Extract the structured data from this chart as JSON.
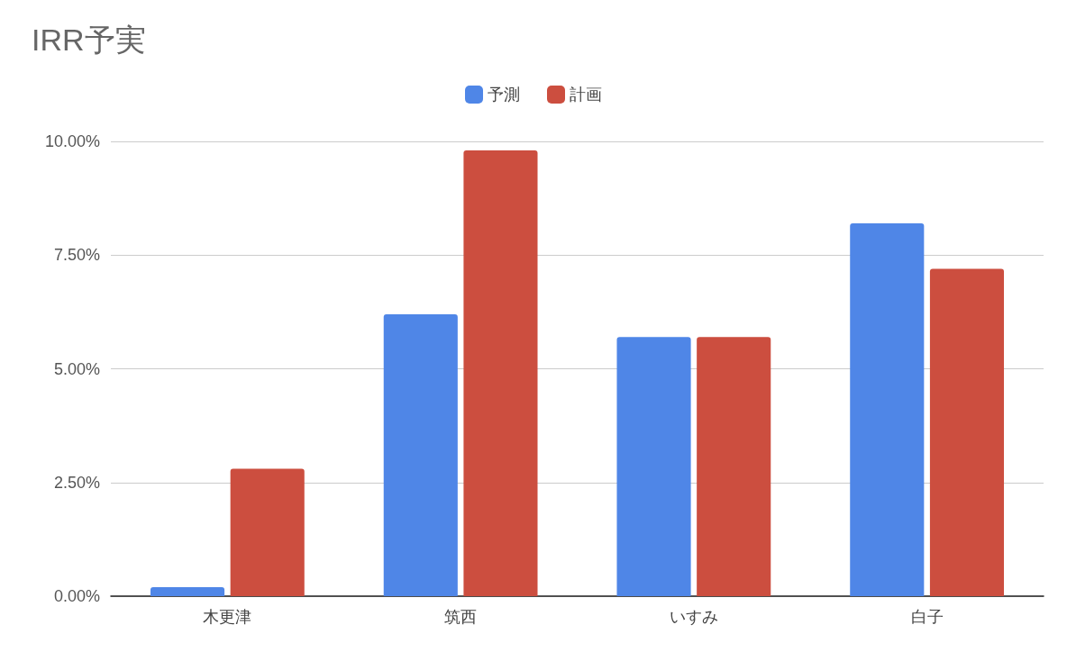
{
  "chart_data": {
    "type": "bar",
    "title": "IRR予実",
    "categories": [
      "木更津",
      "筑西",
      "いすみ",
      "白子"
    ],
    "series": [
      {
        "name": "予測",
        "color": "#4f86e7",
        "values": [
          0.2,
          6.2,
          5.7,
          8.2
        ]
      },
      {
        "name": "計画",
        "color": "#cc4e3f",
        "values": [
          2.8,
          9.8,
          5.7,
          7.2
        ]
      }
    ],
    "ylim": [
      0,
      10
    ],
    "yticks": [
      {
        "value": 0,
        "label": "0.00%"
      },
      {
        "value": 2.5,
        "label": "2.50%"
      },
      {
        "value": 5,
        "label": "5.00%"
      },
      {
        "value": 7.5,
        "label": "7.50%"
      },
      {
        "value": 10,
        "label": "10.00%"
      }
    ],
    "grid": "y",
    "legend": "top"
  }
}
